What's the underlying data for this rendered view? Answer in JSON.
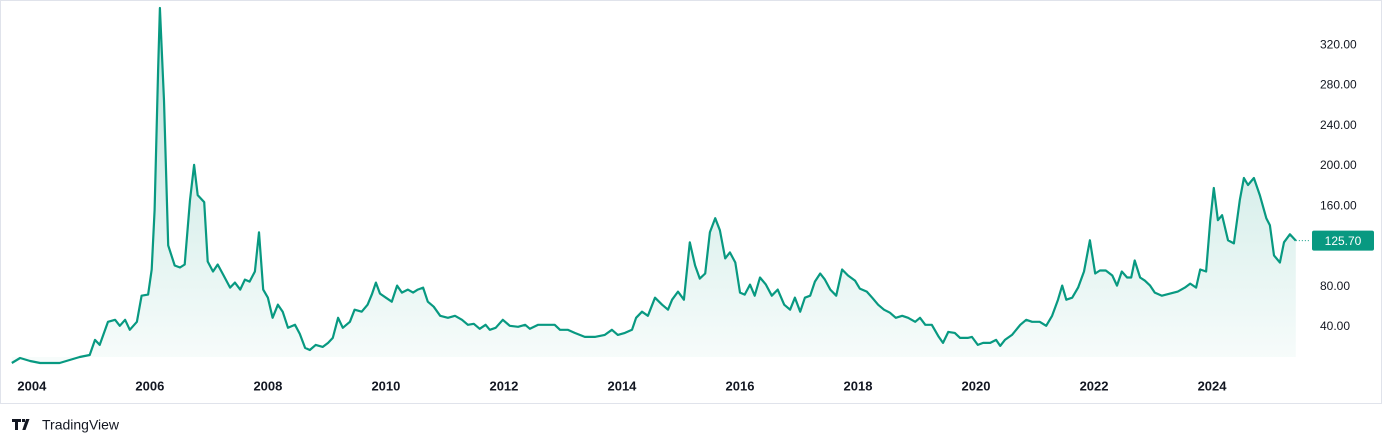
{
  "chart_data": {
    "type": "area-line",
    "brand": "TradingView",
    "color": "#089981",
    "grid": false,
    "xlim": [
      2003.46,
      2025.66
    ],
    "xticks": [
      2004,
      2006,
      2008,
      2010,
      2012,
      2014,
      2016,
      2018,
      2020,
      2022,
      2024
    ],
    "ylim": [
      10,
      360
    ],
    "yticks": [
      {
        "value": 40,
        "label": "40.00"
      },
      {
        "value": 80,
        "label": "80.00"
      },
      {
        "value": 120,
        "label": "120.00"
      },
      {
        "value": 160,
        "label": "160.00"
      },
      {
        "value": 200,
        "label": "200.00"
      },
      {
        "value": 240,
        "label": "240.00"
      },
      {
        "value": 280,
        "label": "280.00"
      },
      {
        "value": 320,
        "label": "320.00"
      }
    ],
    "current_value": 125.7,
    "current_value_label": "125.70",
    "x": [
      2003.66,
      2003.8,
      2003.97,
      2004.14,
      2004.47,
      2004.81,
      2004.98,
      2005.07,
      2005.15,
      2005.29,
      2005.41,
      2005.49,
      2005.58,
      2005.66,
      2005.78,
      2005.86,
      2005.97,
      2006.03,
      2006.08,
      2006.14,
      2006.17,
      2006.24,
      2006.31,
      2006.42,
      2006.51,
      2006.59,
      2006.68,
      2006.75,
      2006.81,
      2006.92,
      2006.98,
      2007.07,
      2007.15,
      2007.24,
      2007.36,
      2007.44,
      2007.53,
      2007.61,
      2007.69,
      2007.78,
      2007.85,
      2007.92,
      2008.0,
      2008.08,
      2008.17,
      2008.25,
      2008.34,
      2008.46,
      2008.54,
      2008.63,
      2008.71,
      2008.81,
      2008.93,
      2009.02,
      2009.1,
      2009.19,
      2009.27,
      2009.39,
      2009.47,
      2009.59,
      2009.69,
      2009.76,
      2009.83,
      2009.9,
      2010.0,
      2010.1,
      2010.19,
      2010.27,
      2010.37,
      2010.46,
      2010.54,
      2010.63,
      2010.71,
      2010.81,
      2010.92,
      2011.05,
      2011.17,
      2011.29,
      2011.39,
      2011.49,
      2011.59,
      2011.69,
      2011.76,
      2011.86,
      2011.98,
      2012.1,
      2012.24,
      2012.36,
      2012.44,
      2012.58,
      2012.69,
      2012.86,
      2012.95,
      2013.08,
      2013.2,
      2013.37,
      2013.54,
      2013.71,
      2013.83,
      2013.93,
      2014.05,
      2014.17,
      2014.24,
      2014.34,
      2014.44,
      2014.56,
      2014.68,
      2014.78,
      2014.85,
      2014.95,
      2015.05,
      2015.15,
      2015.24,
      2015.32,
      2015.41,
      2015.49,
      2015.58,
      2015.66,
      2015.75,
      2015.83,
      2015.92,
      2016.0,
      2016.08,
      2016.17,
      2016.25,
      2016.34,
      2016.44,
      2016.54,
      2016.64,
      2016.75,
      2016.85,
      2016.93,
      2017.02,
      2017.1,
      2017.19,
      2017.27,
      2017.36,
      2017.44,
      2017.53,
      2017.63,
      2017.73,
      2017.83,
      2017.95,
      2018.03,
      2018.15,
      2018.24,
      2018.34,
      2018.44,
      2018.54,
      2018.64,
      2018.75,
      2018.85,
      2018.97,
      2019.05,
      2019.14,
      2019.25,
      2019.37,
      2019.44,
      2019.53,
      2019.64,
      2019.73,
      2019.86,
      2019.93,
      2020.03,
      2020.12,
      2020.24,
      2020.34,
      2020.41,
      2020.49,
      2020.61,
      2020.75,
      2020.85,
      2020.95,
      2021.08,
      2021.19,
      2021.29,
      2021.39,
      2021.46,
      2021.53,
      2021.63,
      2021.73,
      2021.83,
      2021.93,
      2022.02,
      2022.1,
      2022.2,
      2022.31,
      2022.39,
      2022.47,
      2022.56,
      2022.63,
      2022.69,
      2022.78,
      2022.86,
      2022.95,
      2023.03,
      2023.15,
      2023.29,
      2023.42,
      2023.54,
      2023.63,
      2023.73,
      2023.8,
      2023.9,
      2023.97,
      2024.03,
      2024.1,
      2024.17,
      2024.27,
      2024.37,
      2024.47,
      2024.54,
      2024.61,
      2024.71,
      2024.81,
      2024.92,
      2024.98,
      2025.05,
      2025.15,
      2025.22,
      2025.32,
      2025.42
    ],
    "values": [
      4,
      9,
      6,
      4,
      4,
      10,
      12,
      27,
      22,
      45,
      47,
      41,
      47,
      37,
      45,
      71,
      72,
      97,
      156,
      295,
      357,
      265,
      121,
      101,
      99,
      102,
      166,
      201,
      171,
      164,
      105,
      95,
      102,
      92,
      79,
      84,
      77,
      87,
      85,
      95,
      134,
      77,
      69,
      49,
      62,
      55,
      39,
      42,
      33,
      19,
      17,
      22,
      20,
      24,
      29,
      49,
      39,
      45,
      57,
      55,
      62,
      72,
      84,
      73,
      69,
      65,
      81,
      74,
      77,
      74,
      77,
      79,
      65,
      60,
      51,
      49,
      51,
      47,
      42,
      43,
      38,
      42,
      37,
      39,
      47,
      41,
      40,
      42,
      38,
      42,
      42,
      42,
      37,
      37,
      34,
      30,
      30,
      32,
      37,
      32,
      34,
      37,
      49,
      55,
      51,
      69,
      62,
      57,
      67,
      75,
      67,
      124,
      101,
      88,
      93,
      134,
      148,
      136,
      108,
      114,
      104,
      74,
      72,
      82,
      71,
      89,
      82,
      71,
      77,
      62,
      57,
      69,
      55,
      69,
      71,
      85,
      93,
      87,
      77,
      71,
      97,
      91,
      86,
      78,
      75,
      69,
      62,
      57,
      54,
      49,
      51,
      49,
      45,
      49,
      42,
      42,
      30,
      24,
      35,
      34,
      29,
      29,
      30,
      22,
      24,
      24,
      27,
      21,
      27,
      32,
      42,
      47,
      45,
      45,
      41,
      51,
      67,
      81,
      67,
      69,
      79,
      95,
      126,
      93,
      96,
      96,
      91,
      81,
      95,
      89,
      89,
      106,
      89,
      86,
      81,
      74,
      71,
      73,
      75,
      79,
      83,
      79,
      97,
      95,
      146,
      178,
      146,
      151,
      126,
      123,
      166,
      188,
      181,
      188,
      171,
      148,
      141,
      111,
      104,
      124,
      132,
      125.7
    ]
  }
}
